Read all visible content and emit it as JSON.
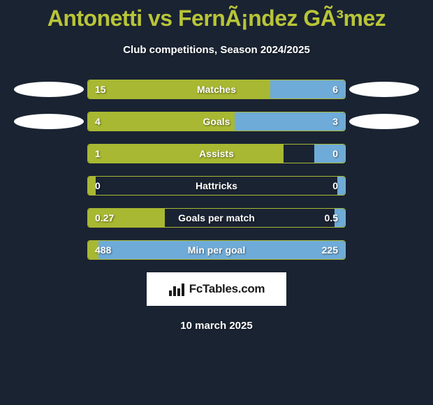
{
  "title": "Antonetti vs FernÃ¡ndez GÃ³mez",
  "subtitle": "Club competitions, Season 2024/2025",
  "colors": {
    "background": "#1a2332",
    "title": "#b8c537",
    "left_bar": "#a8b832",
    "right_bar": "#6fabd8",
    "border": "#a8b832",
    "text": "#ffffff",
    "ellipse": "#ffffff"
  },
  "decorations": {
    "show_row0": true,
    "show_row1": true
  },
  "stats": [
    {
      "label": "Matches",
      "left_val": "15",
      "right_val": "6",
      "left_pct": 71,
      "right_pct": 29
    },
    {
      "label": "Goals",
      "left_val": "4",
      "right_val": "3",
      "left_pct": 57,
      "right_pct": 43
    },
    {
      "label": "Assists",
      "left_val": "1",
      "right_val": "0",
      "left_pct": 76,
      "right_pct": 12
    },
    {
      "label": "Hattricks",
      "left_val": "0",
      "right_val": "0",
      "left_pct": 3,
      "right_pct": 3
    },
    {
      "label": "Goals per match",
      "left_val": "0.27",
      "right_val": "0.5",
      "left_pct": 30,
      "right_pct": 4
    },
    {
      "label": "Min per goal",
      "left_val": "488",
      "right_val": "225",
      "left_pct": 4,
      "right_pct": 96
    }
  ],
  "footer": {
    "logo_text": "FcTables.com",
    "date": "10 march 2025"
  }
}
